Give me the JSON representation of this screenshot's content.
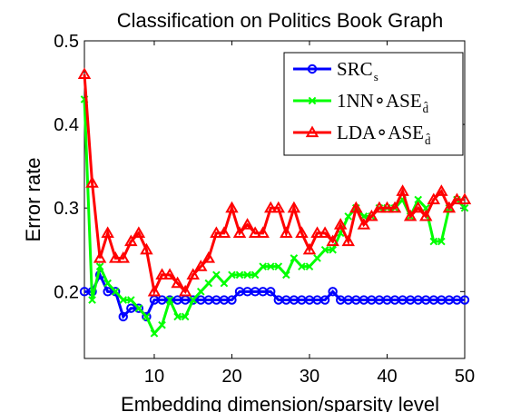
{
  "chart_data": {
    "type": "line",
    "title": "Classification on Politics Book Graph",
    "xlabel": "Embedding dimension/sparsity level",
    "ylabel": "Error rate",
    "xlim": [
      1,
      50
    ],
    "ylim": [
      0.12,
      0.5
    ],
    "xticks": [
      10,
      20,
      30,
      40,
      50
    ],
    "yticks": [
      0.2,
      0.3,
      0.4,
      0.5
    ],
    "xtick_labels": [
      "10",
      "20",
      "30",
      "40",
      "50"
    ],
    "ytick_labels": [
      "0.2",
      "0.3",
      "0.4",
      "0.5"
    ],
    "grid": false,
    "legend_position": "top-right",
    "x": [
      1,
      2,
      3,
      4,
      5,
      6,
      7,
      8,
      9,
      10,
      11,
      12,
      13,
      14,
      15,
      16,
      17,
      18,
      19,
      20,
      21,
      22,
      23,
      24,
      25,
      26,
      27,
      28,
      29,
      30,
      31,
      32,
      33,
      34,
      35,
      36,
      37,
      38,
      39,
      40,
      41,
      42,
      43,
      44,
      45,
      46,
      47,
      48,
      49,
      50
    ],
    "series": [
      {
        "name": "SRC",
        "subscript": "s",
        "color": "#0000ff",
        "marker": "circle",
        "values": [
          0.2,
          0.2,
          0.22,
          0.2,
          0.2,
          0.17,
          0.18,
          0.18,
          0.17,
          0.19,
          0.19,
          0.19,
          0.19,
          0.19,
          0.19,
          0.19,
          0.19,
          0.19,
          0.19,
          0.19,
          0.2,
          0.2,
          0.2,
          0.2,
          0.2,
          0.19,
          0.19,
          0.19,
          0.19,
          0.19,
          0.19,
          0.19,
          0.2,
          0.19,
          0.19,
          0.19,
          0.19,
          0.19,
          0.19,
          0.19,
          0.19,
          0.19,
          0.19,
          0.19,
          0.19,
          0.19,
          0.19,
          0.19,
          0.19,
          0.19
        ]
      },
      {
        "name": "1NN∘ASE",
        "subscript": "d̂",
        "color": "#00ff00",
        "marker": "x",
        "values": [
          0.43,
          0.19,
          0.23,
          0.21,
          0.2,
          0.19,
          0.19,
          0.18,
          0.17,
          0.15,
          0.16,
          0.19,
          0.17,
          0.17,
          0.19,
          0.2,
          0.21,
          0.22,
          0.21,
          0.22,
          0.22,
          0.22,
          0.22,
          0.23,
          0.23,
          0.23,
          0.22,
          0.24,
          0.23,
          0.23,
          0.24,
          0.25,
          0.25,
          0.27,
          0.29,
          0.3,
          0.29,
          0.29,
          0.3,
          0.3,
          0.3,
          0.31,
          0.29,
          0.31,
          0.3,
          0.26,
          0.26,
          0.3,
          0.31,
          0.3
        ]
      },
      {
        "name": "LDA∘ASE",
        "subscript": "d̂",
        "color": "#ff0000",
        "marker": "triangle",
        "values": [
          0.46,
          0.33,
          0.24,
          0.27,
          0.24,
          0.24,
          0.26,
          0.27,
          0.25,
          0.2,
          0.22,
          0.22,
          0.21,
          0.2,
          0.22,
          0.23,
          0.24,
          0.27,
          0.27,
          0.3,
          0.27,
          0.28,
          0.27,
          0.27,
          0.3,
          0.3,
          0.27,
          0.3,
          0.27,
          0.25,
          0.27,
          0.27,
          0.26,
          0.28,
          0.26,
          0.3,
          0.28,
          0.29,
          0.3,
          0.3,
          0.3,
          0.32,
          0.29,
          0.3,
          0.29,
          0.31,
          0.32,
          0.3,
          0.31,
          0.31
        ]
      }
    ]
  }
}
